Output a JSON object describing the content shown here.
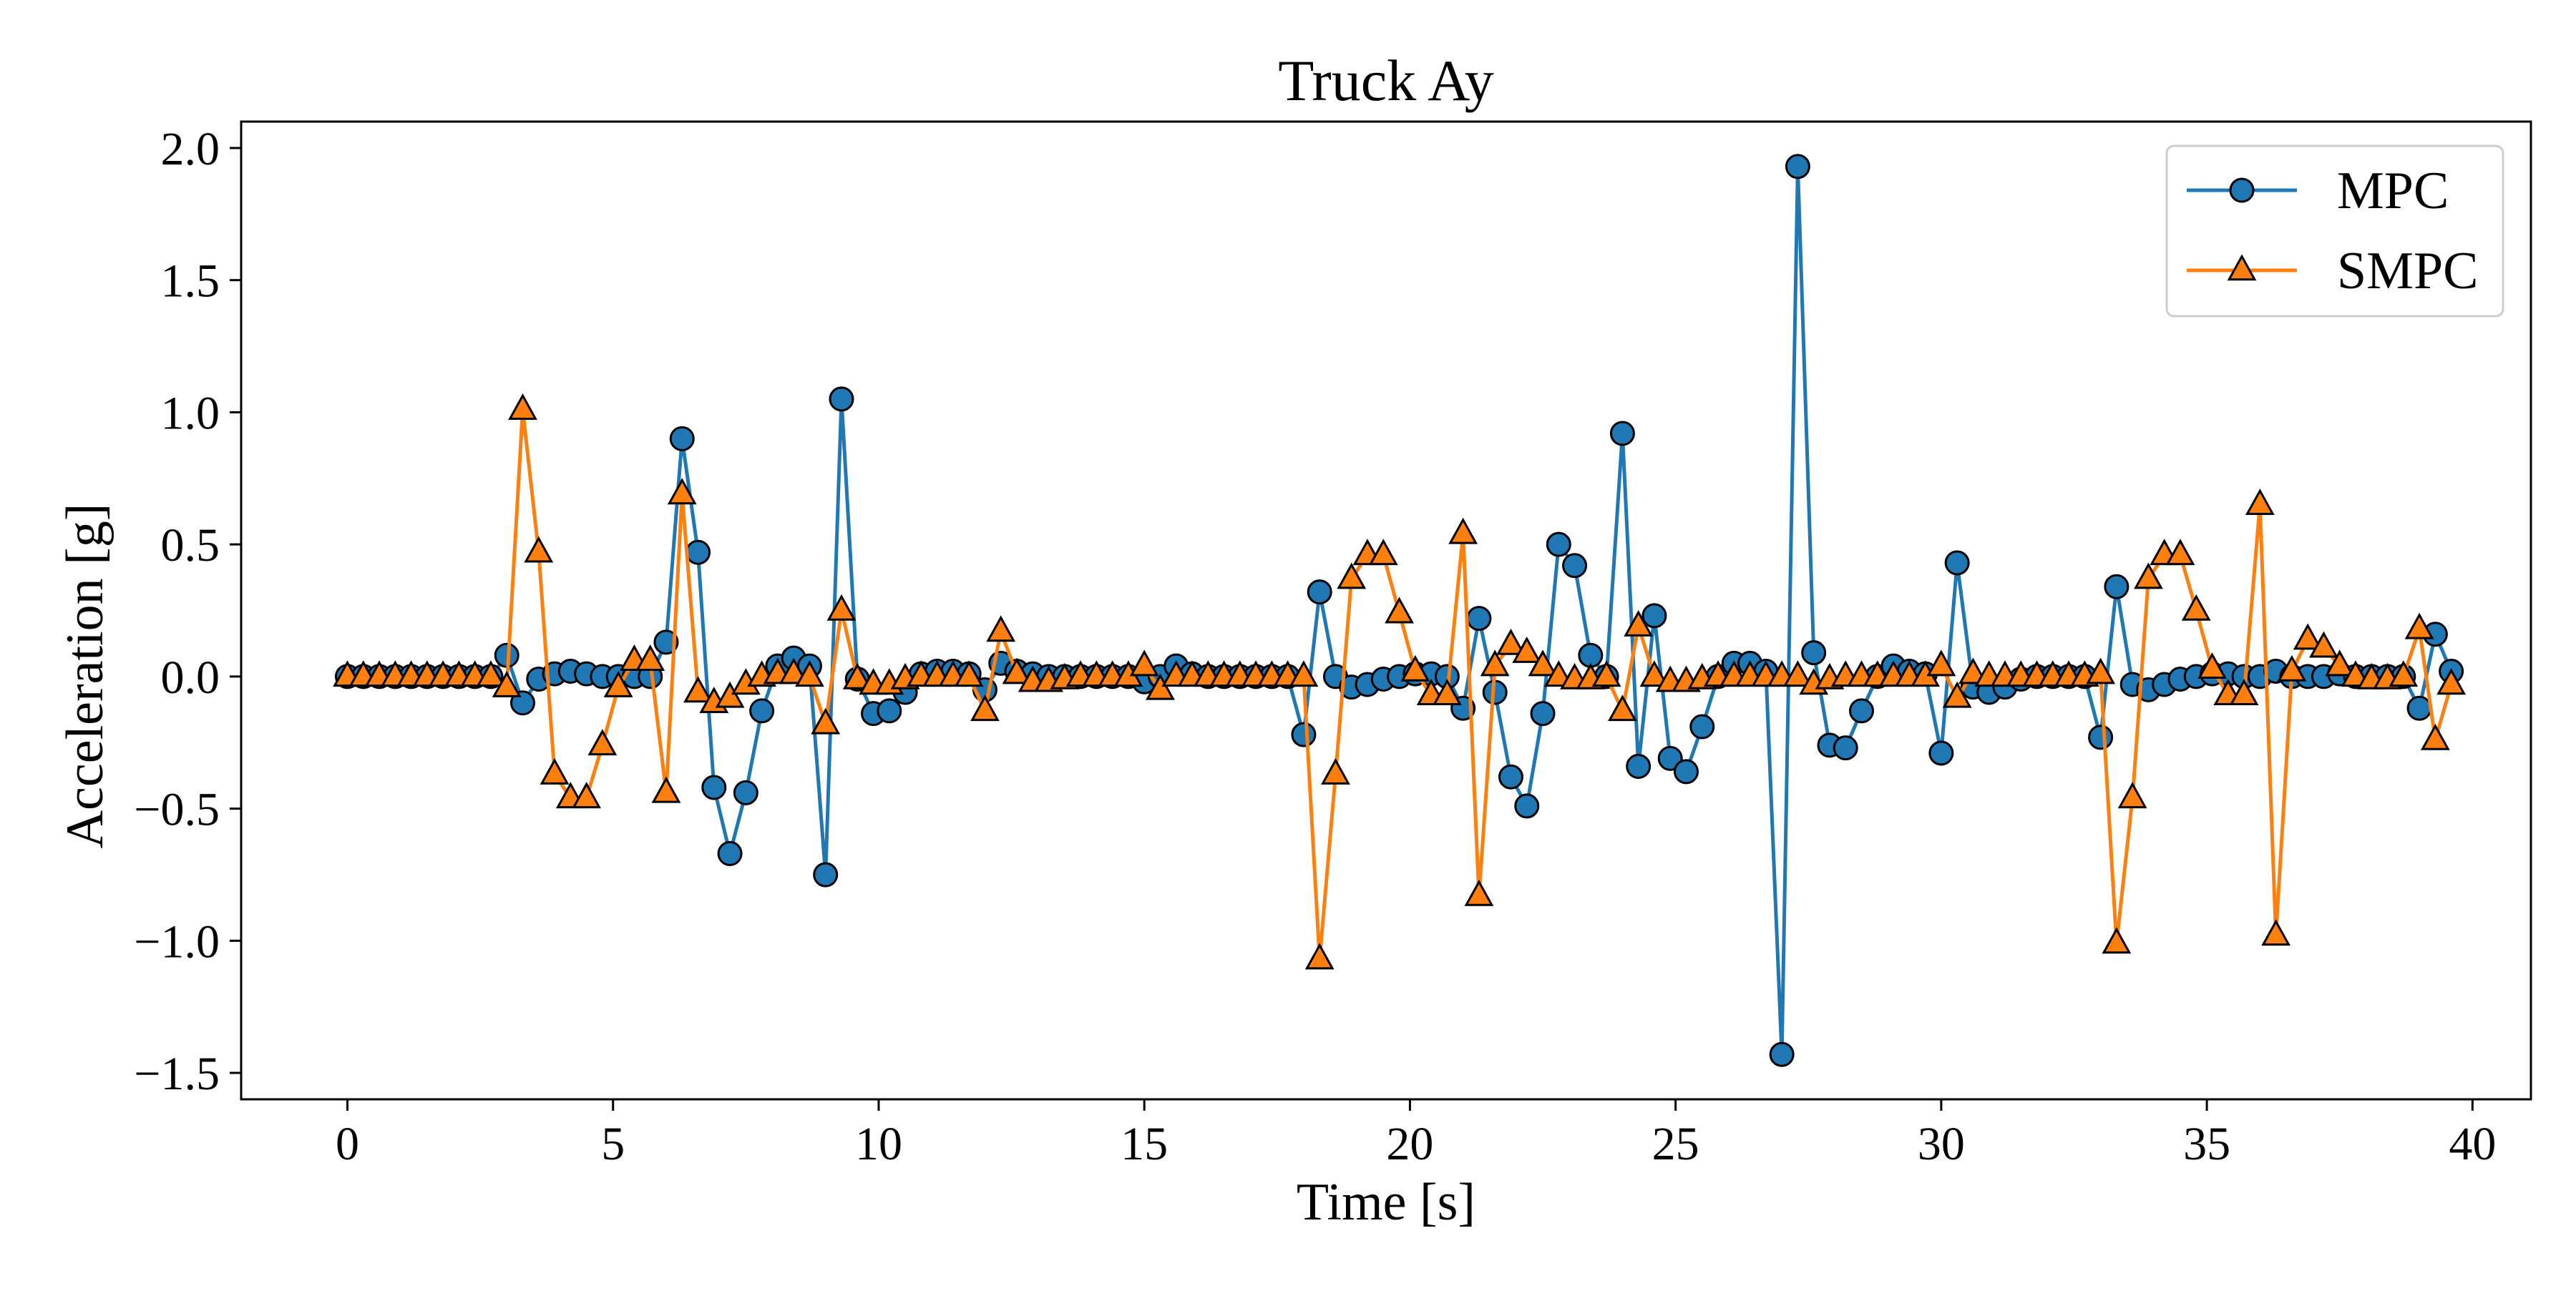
{
  "chart_data": {
    "type": "line",
    "title": "Truck Ay",
    "xlabel": "Time [s]",
    "ylabel": "Acceleration [g]",
    "xlim": [
      -2.0,
      41.1
    ],
    "ylim": [
      -1.6,
      2.1
    ],
    "x_ticks": [
      0,
      5,
      10,
      15,
      20,
      25,
      30,
      35,
      40
    ],
    "x_tick_labels": [
      "0",
      "5",
      "10",
      "15",
      "20",
      "25",
      "30",
      "35",
      "40"
    ],
    "y_ticks": [
      2.0,
      1.5,
      1.0,
      0.5,
      0.0,
      -0.5,
      -1.0,
      -1.5
    ],
    "y_tick_labels": [
      "2.0",
      "1.5",
      "1.0",
      "0.5",
      "0.0",
      "−0.5",
      "−1.0",
      "−1.5"
    ],
    "grid": false,
    "legend_position": "top-right",
    "series": [
      {
        "name": "MPC",
        "color": "#1f77b4",
        "marker": "circle",
        "points": [
          [
            0,
            0
          ],
          [
            0.3,
            0
          ],
          [
            0.6,
            0
          ],
          [
            0.9,
            0
          ],
          [
            1.2,
            0
          ],
          [
            1.5,
            0
          ],
          [
            1.8,
            0
          ],
          [
            2.1,
            0
          ],
          [
            2.4,
            0
          ],
          [
            2.7,
            0
          ],
          [
            3.0,
            0.08
          ],
          [
            3.3,
            -0.1
          ],
          [
            3.6,
            -0.01
          ],
          [
            3.9,
            0.01
          ],
          [
            4.2,
            0.02
          ],
          [
            4.5,
            0.01
          ],
          [
            4.8,
            0.0
          ],
          [
            5.1,
            0.0
          ],
          [
            5.4,
            0.0
          ],
          [
            5.7,
            0.0
          ],
          [
            6.0,
            0.13
          ],
          [
            6.3,
            0.9
          ],
          [
            6.6,
            0.47
          ],
          [
            6.9,
            -0.42
          ],
          [
            7.2,
            -0.67
          ],
          [
            7.5,
            -0.44
          ],
          [
            7.8,
            -0.13
          ],
          [
            8.1,
            0.04
          ],
          [
            8.4,
            0.07
          ],
          [
            8.7,
            0.04
          ],
          [
            9.0,
            -0.75
          ],
          [
            9.3,
            1.05
          ],
          [
            9.6,
            -0.01
          ],
          [
            9.9,
            -0.14
          ],
          [
            10.2,
            -0.13
          ],
          [
            10.5,
            -0.06
          ],
          [
            10.8,
            0.01
          ],
          [
            11.1,
            0.02
          ],
          [
            11.4,
            0.02
          ],
          [
            11.7,
            0.01
          ],
          [
            12.0,
            -0.05
          ],
          [
            12.3,
            0.05
          ],
          [
            12.6,
            0.02
          ],
          [
            12.9,
            0.01
          ],
          [
            13.2,
            0.0
          ],
          [
            13.5,
            0.0
          ],
          [
            13.8,
            0.0
          ],
          [
            14.1,
            0.0
          ],
          [
            14.4,
            0.0
          ],
          [
            14.7,
            0.0
          ],
          [
            15.0,
            -0.02
          ],
          [
            15.3,
            0.0
          ],
          [
            15.6,
            0.04
          ],
          [
            15.9,
            0.01
          ],
          [
            16.2,
            0.0
          ],
          [
            16.5,
            0.0
          ],
          [
            16.8,
            0.0
          ],
          [
            17.1,
            0.0
          ],
          [
            17.4,
            0.0
          ],
          [
            17.7,
            0.0
          ],
          [
            18.0,
            -0.22
          ],
          [
            18.3,
            0.32
          ],
          [
            18.6,
            0.0
          ],
          [
            18.9,
            -0.04
          ],
          [
            19.2,
            -0.03
          ],
          [
            19.5,
            -0.01
          ],
          [
            19.8,
            0.0
          ],
          [
            20.1,
            0.01
          ],
          [
            20.4,
            0.01
          ],
          [
            20.7,
            0.0
          ],
          [
            21.0,
            -0.12
          ],
          [
            21.3,
            0.22
          ],
          [
            21.6,
            -0.06
          ],
          [
            21.9,
            -0.38
          ],
          [
            22.2,
            -0.49
          ],
          [
            22.5,
            -0.14
          ],
          [
            22.8,
            0.5
          ],
          [
            23.1,
            0.42
          ],
          [
            23.4,
            0.08
          ],
          [
            23.7,
            0.0
          ],
          [
            24.0,
            0.92
          ],
          [
            24.3,
            -0.34
          ],
          [
            24.6,
            0.23
          ],
          [
            24.9,
            -0.31
          ],
          [
            25.2,
            -0.36
          ],
          [
            25.5,
            -0.19
          ],
          [
            25.8,
            0.0
          ],
          [
            26.1,
            0.05
          ],
          [
            26.4,
            0.05
          ],
          [
            26.7,
            0.02
          ],
          [
            27.0,
            -1.43
          ],
          [
            27.3,
            1.93
          ],
          [
            27.6,
            0.09
          ],
          [
            27.9,
            -0.26
          ],
          [
            28.2,
            -0.27
          ],
          [
            28.5,
            -0.13
          ],
          [
            28.8,
            0.0
          ],
          [
            29.1,
            0.04
          ],
          [
            29.4,
            0.02
          ],
          [
            29.7,
            0.01
          ],
          [
            30.0,
            -0.29
          ],
          [
            30.3,
            0.43
          ],
          [
            30.6,
            -0.04
          ],
          [
            30.9,
            -0.06
          ],
          [
            31.2,
            -0.04
          ],
          [
            31.5,
            -0.01
          ],
          [
            31.8,
            0.0
          ],
          [
            32.1,
            0.0
          ],
          [
            32.4,
            0.0
          ],
          [
            32.7,
            0.0
          ],
          [
            33.0,
            -0.23
          ],
          [
            33.3,
            0.34
          ],
          [
            33.6,
            -0.03
          ],
          [
            33.9,
            -0.05
          ],
          [
            34.2,
            -0.03
          ],
          [
            34.5,
            -0.01
          ],
          [
            34.8,
            0.0
          ],
          [
            35.1,
            0.01
          ],
          [
            35.4,
            0.01
          ],
          [
            35.7,
            0.0
          ],
          [
            36.0,
            0.0
          ],
          [
            36.3,
            0.02
          ],
          [
            36.6,
            0.0
          ],
          [
            36.9,
            0.0
          ],
          [
            37.2,
            0.0
          ],
          [
            37.5,
            0.01
          ],
          [
            37.8,
            0.0
          ],
          [
            38.1,
            0.0
          ],
          [
            38.4,
            0.0
          ],
          [
            38.7,
            0.0
          ],
          [
            39.0,
            -0.12
          ],
          [
            39.3,
            0.16
          ],
          [
            39.6,
            0.02
          ]
        ]
      },
      {
        "name": "SMPC",
        "color": "#ff7f0e",
        "marker": "triangle",
        "points": [
          [
            0,
            0
          ],
          [
            0.3,
            0
          ],
          [
            0.6,
            0
          ],
          [
            0.9,
            0
          ],
          [
            1.2,
            0
          ],
          [
            1.5,
            0
          ],
          [
            1.8,
            0
          ],
          [
            2.1,
            0
          ],
          [
            2.4,
            0
          ],
          [
            2.7,
            0
          ],
          [
            3.0,
            -0.04
          ],
          [
            3.3,
            1.01
          ],
          [
            3.6,
            0.47
          ],
          [
            3.9,
            -0.37
          ],
          [
            4.2,
            -0.46
          ],
          [
            4.5,
            -0.46
          ],
          [
            4.8,
            -0.26
          ],
          [
            5.1,
            -0.04
          ],
          [
            5.4,
            0.06
          ],
          [
            5.7,
            0.06
          ],
          [
            6.0,
            -0.44
          ],
          [
            6.3,
            0.69
          ],
          [
            6.6,
            -0.06
          ],
          [
            6.9,
            -0.1
          ],
          [
            7.2,
            -0.08
          ],
          [
            7.5,
            -0.03
          ],
          [
            7.8,
            0.0
          ],
          [
            8.1,
            0.01
          ],
          [
            8.4,
            0.01
          ],
          [
            8.7,
            0.0
          ],
          [
            9.0,
            -0.18
          ],
          [
            9.3,
            0.25
          ],
          [
            9.6,
            -0.01
          ],
          [
            9.9,
            -0.03
          ],
          [
            10.2,
            -0.03
          ],
          [
            10.5,
            -0.01
          ],
          [
            10.8,
            0.0
          ],
          [
            11.1,
            0.0
          ],
          [
            11.4,
            0.0
          ],
          [
            11.7,
            0.0
          ],
          [
            12.0,
            -0.13
          ],
          [
            12.3,
            0.17
          ],
          [
            12.6,
            0.01
          ],
          [
            12.9,
            -0.02
          ],
          [
            13.2,
            -0.02
          ],
          [
            13.5,
            -0.01
          ],
          [
            13.8,
            0.0
          ],
          [
            14.1,
            0.0
          ],
          [
            14.4,
            0.0
          ],
          [
            14.7,
            0.0
          ],
          [
            15.0,
            0.04
          ],
          [
            15.3,
            -0.05
          ],
          [
            15.6,
            0.0
          ],
          [
            15.9,
            0.0
          ],
          [
            16.2,
            0.0
          ],
          [
            16.5,
            0.0
          ],
          [
            16.8,
            0.0
          ],
          [
            17.1,
            0.0
          ],
          [
            17.4,
            0.0
          ],
          [
            17.7,
            0.0
          ],
          [
            18.0,
            0.0
          ],
          [
            18.3,
            -1.07
          ],
          [
            18.6,
            -0.37
          ],
          [
            18.9,
            0.37
          ],
          [
            19.2,
            0.46
          ],
          [
            19.5,
            0.46
          ],
          [
            19.8,
            0.24
          ],
          [
            20.1,
            0.02
          ],
          [
            20.4,
            -0.07
          ],
          [
            20.7,
            -0.07
          ],
          [
            21.0,
            0.54
          ],
          [
            21.3,
            -0.83
          ],
          [
            21.6,
            0.04
          ],
          [
            21.9,
            0.12
          ],
          [
            22.2,
            0.09
          ],
          [
            22.5,
            0.04
          ],
          [
            22.8,
            0.0
          ],
          [
            23.1,
            -0.01
          ],
          [
            23.4,
            -0.01
          ],
          [
            23.7,
            0.0
          ],
          [
            24.0,
            -0.13
          ],
          [
            24.3,
            0.19
          ],
          [
            24.6,
            0.0
          ],
          [
            24.9,
            -0.02
          ],
          [
            25.2,
            -0.02
          ],
          [
            25.5,
            -0.01
          ],
          [
            25.8,
            0.0
          ],
          [
            26.1,
            0.0
          ],
          [
            26.4,
            0.0
          ],
          [
            26.7,
            0.0
          ],
          [
            27.0,
            0.0
          ],
          [
            27.3,
            0.0
          ],
          [
            27.6,
            -0.03
          ],
          [
            27.9,
            -0.01
          ],
          [
            28.2,
            0.0
          ],
          [
            28.5,
            0.0
          ],
          [
            28.8,
            0.0
          ],
          [
            29.1,
            0.0
          ],
          [
            29.4,
            0.0
          ],
          [
            29.7,
            0.0
          ],
          [
            30.0,
            0.04
          ],
          [
            30.3,
            -0.08
          ],
          [
            30.6,
            0.01
          ],
          [
            30.9,
            0.0
          ],
          [
            31.2,
            0.0
          ],
          [
            31.5,
            0.0
          ],
          [
            31.8,
            0.0
          ],
          [
            32.1,
            0.0
          ],
          [
            32.4,
            0.0
          ],
          [
            32.7,
            0.0
          ],
          [
            33.0,
            0.01
          ],
          [
            33.3,
            -1.01
          ],
          [
            33.6,
            -0.46
          ],
          [
            33.9,
            0.37
          ],
          [
            34.2,
            0.46
          ],
          [
            34.5,
            0.46
          ],
          [
            34.8,
            0.25
          ],
          [
            35.1,
            0.03
          ],
          [
            35.4,
            -0.07
          ],
          [
            35.7,
            -0.07
          ],
          [
            36.0,
            0.65
          ],
          [
            36.3,
            -0.98
          ],
          [
            36.6,
            0.02
          ],
          [
            36.9,
            0.14
          ],
          [
            37.2,
            0.11
          ],
          [
            37.5,
            0.04
          ],
          [
            37.8,
            0.0
          ],
          [
            38.1,
            -0.01
          ],
          [
            38.4,
            -0.01
          ],
          [
            38.7,
            0.0
          ],
          [
            39.0,
            0.18
          ],
          [
            39.3,
            -0.24
          ],
          [
            39.6,
            -0.03
          ]
        ]
      }
    ]
  }
}
